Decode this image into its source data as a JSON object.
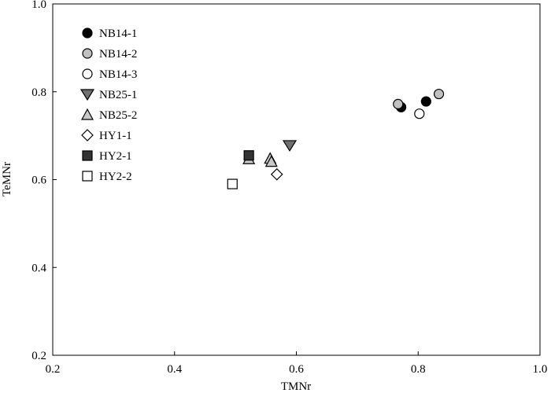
{
  "chart_data": {
    "type": "scatter",
    "xlabel": "TMNr",
    "ylabel": "TeMNr",
    "xlim": [
      0.2,
      1.0
    ],
    "ylim": [
      0.2,
      1.0
    ],
    "x_ticks": [
      0.2,
      0.4,
      0.6,
      0.8,
      1.0
    ],
    "x_tick_labels": [
      "0.2",
      "0.4",
      "0.6",
      "0.8",
      "1.0"
    ],
    "y_ticks": [
      0.2,
      0.4,
      0.6,
      0.8,
      1.0
    ],
    "y_tick_labels": [
      "0.2",
      "0.4",
      "0.6",
      "0.8",
      "1.0"
    ],
    "grid": false,
    "legend_position": "top-left",
    "series": [
      {
        "name": "NB14-1",
        "marker": "circle",
        "fill": "#000000",
        "points": [
          [
            0.772,
            0.765
          ],
          [
            0.813,
            0.778
          ]
        ]
      },
      {
        "name": "NB14-2",
        "marker": "circle",
        "fill": "#c0c0c0",
        "points": [
          [
            0.767,
            0.772
          ],
          [
            0.834,
            0.795
          ]
        ]
      },
      {
        "name": "NB14-3",
        "marker": "circle",
        "fill": "#ffffff",
        "points": [
          [
            0.802,
            0.75
          ]
        ]
      },
      {
        "name": "NB25-1",
        "marker": "triangle-down",
        "fill": "#707070",
        "points": [
          [
            0.589,
            0.678
          ]
        ]
      },
      {
        "name": "NB25-2",
        "marker": "triangle-up",
        "fill": "#c8c8c8",
        "points": [
          [
            0.522,
            0.647
          ],
          [
            0.557,
            0.648
          ],
          [
            0.559,
            0.641
          ]
        ]
      },
      {
        "name": "HY1-1",
        "marker": "diamond",
        "fill": "#ffffff",
        "points": [
          [
            0.568,
            0.612
          ]
        ]
      },
      {
        "name": "HY2-1",
        "marker": "square",
        "fill": "#333333",
        "points": [
          [
            0.522,
            0.655
          ]
        ]
      },
      {
        "name": "HY2-2",
        "marker": "square",
        "fill": "#ffffff",
        "points": [
          [
            0.495,
            0.59
          ]
        ]
      }
    ]
  }
}
